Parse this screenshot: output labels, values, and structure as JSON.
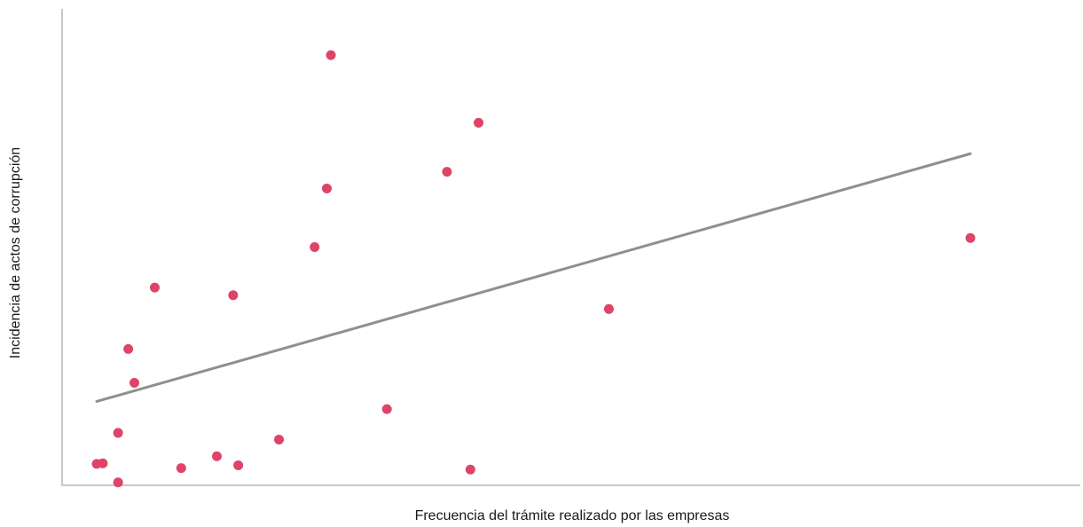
{
  "chart_data": {
    "type": "scatter",
    "title": "",
    "xlabel": "Frecuencia del trámite realizado por las empresas",
    "ylabel": "Incidencia de actos de corrupción",
    "xlim": [
      0,
      100
    ],
    "ylim": [
      0,
      100
    ],
    "grid": false,
    "legend": "none",
    "colors": {
      "points": "#de4467",
      "trendline": "#8f8f8f",
      "axis": "#c8c8c8"
    },
    "series": [
      {
        "points": [
          {
            "x": 3.4,
            "y": 4.5
          },
          {
            "x": 4.0,
            "y": 4.6
          },
          {
            "x": 5.5,
            "y": 0.6
          },
          {
            "x": 5.5,
            "y": 11.0
          },
          {
            "x": 6.5,
            "y": 28.6
          },
          {
            "x": 7.1,
            "y": 21.5
          },
          {
            "x": 9.1,
            "y": 41.5
          },
          {
            "x": 11.7,
            "y": 3.6
          },
          {
            "x": 15.2,
            "y": 6.1
          },
          {
            "x": 16.8,
            "y": 39.9
          },
          {
            "x": 17.3,
            "y": 4.2
          },
          {
            "x": 21.3,
            "y": 9.6
          },
          {
            "x": 24.8,
            "y": 50.0
          },
          {
            "x": 26.0,
            "y": 62.3
          },
          {
            "x": 26.4,
            "y": 90.3
          },
          {
            "x": 31.9,
            "y": 16.0
          },
          {
            "x": 37.8,
            "y": 65.8
          },
          {
            "x": 40.1,
            "y": 3.3
          },
          {
            "x": 40.9,
            "y": 76.1
          },
          {
            "x": 53.7,
            "y": 37.0
          },
          {
            "x": 89.2,
            "y": 51.9
          }
        ]
      }
    ],
    "trendline": {
      "x": [
        3.4,
        89.2
      ],
      "y": [
        17.6,
        69.6
      ]
    }
  }
}
